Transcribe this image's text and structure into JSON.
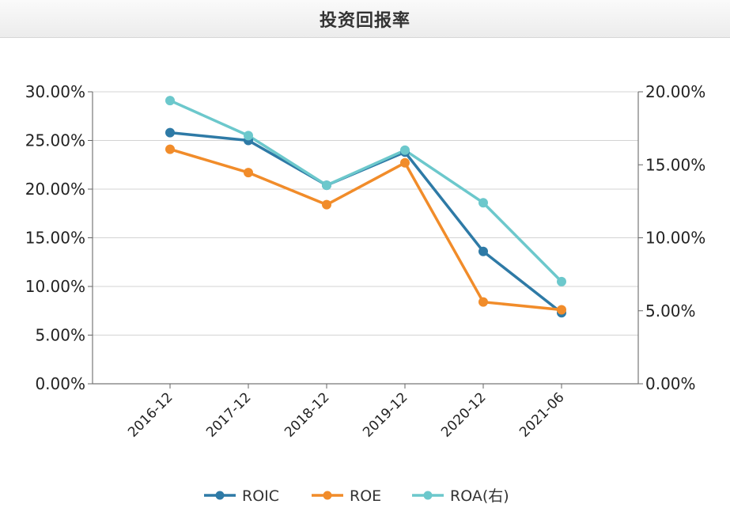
{
  "header": {
    "title": "投资回报率"
  },
  "chart_data": {
    "type": "line",
    "title": "投资回报率",
    "categories": [
      "2016-12",
      "2017-12",
      "2018-12",
      "2019-12",
      "2020-12",
      "2021-06"
    ],
    "y_left": {
      "ticks": [
        "0.00%",
        "5.00%",
        "10.00%",
        "15.00%",
        "20.00%",
        "25.00%",
        "30.00%"
      ],
      "ylim": [
        0,
        30
      ]
    },
    "y_right": {
      "ticks": [
        "0.00%",
        "5.00%",
        "10.00%",
        "15.00%",
        "20.00%"
      ],
      "ylim": [
        0,
        20
      ]
    },
    "grid": true,
    "legend_position": "bottom",
    "series": [
      {
        "name": "ROIC",
        "axis": "left",
        "color": "#2e7aa6",
        "values": [
          25.8,
          25.0,
          20.4,
          23.8,
          13.6,
          7.3
        ]
      },
      {
        "name": "ROE",
        "axis": "left",
        "color": "#f18c2a",
        "values": [
          24.1,
          21.7,
          18.4,
          22.7,
          8.4,
          7.6
        ]
      },
      {
        "name": "ROA(右)",
        "axis": "right",
        "color": "#6cc8cc",
        "values": [
          19.4,
          17.0,
          13.6,
          16.0,
          12.4,
          7.0
        ]
      }
    ]
  }
}
